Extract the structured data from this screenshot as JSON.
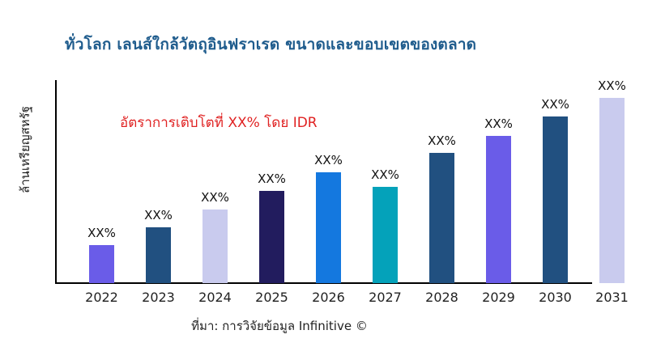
{
  "header": {
    "title": "ทั่วโลก เลนส์ใกล้วัตถุอินฟราเรด ขนาดและขอบเขตของตลาด",
    "title_color": "#1f5c8d"
  },
  "chart_data": {
    "type": "bar",
    "title": "ทั่วโลก เลนส์ใกล้วัตถุอินฟราเรด ขนาดและขอบเขตของตลาด",
    "xlabel": "",
    "ylabel": "ล้านเหรียญสหรัฐ",
    "categories": [
      "2022",
      "2023",
      "2024",
      "2025",
      "2026",
      "2027",
      "2028",
      "2029",
      "2030",
      "2031"
    ],
    "value_labels": [
      "XX%",
      "XX%",
      "XX%",
      "XX%",
      "XX%",
      "XX%",
      "XX%",
      "XX%",
      "XX%",
      "XX%"
    ],
    "values_relative": [
      47,
      69,
      91,
      114,
      137,
      119,
      161,
      182,
      206,
      229
    ],
    "values_note": "Numeric values are masked on the chart as XX%; values_relative are bar heights estimated in pixels.",
    "bar_colors": [
      "#6a5ce8",
      "#215080",
      "#c9cbee",
      "#221c5e",
      "#1478df",
      "#04a2ba",
      "#215080",
      "#6a5ce8",
      "#215080",
      "#c9cbee"
    ],
    "annotation": {
      "text": "อัตราการเติบโตที่ XX% โดย IDR",
      "color": "#e02222"
    },
    "legend": false,
    "grid": false,
    "axis_color": "#000000",
    "ylim": [
      0,
      260
    ]
  },
  "footer": {
    "source": "ที่มา: การวิจัยข้อมูล Infinitive ©"
  }
}
